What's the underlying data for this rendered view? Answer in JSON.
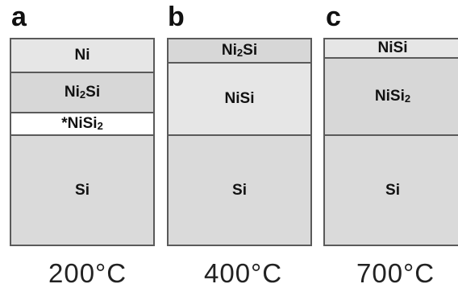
{
  "panels": [
    {
      "letter": "a",
      "temperature": "200°C",
      "layers": [
        {
          "base": "Ni",
          "sub": "",
          "fill": "#e6e6e6"
        },
        {
          "base": "Ni",
          "sub": "2",
          "tail": "Si",
          "fill": "#d7d7d7"
        },
        {
          "base": "*NiSi",
          "sub": "2",
          "fill": "#ffffff"
        },
        {
          "base": "Si",
          "sub": "",
          "fill": "#dadada"
        }
      ]
    },
    {
      "letter": "b",
      "temperature": "400°C",
      "layers": [
        {
          "base": "Ni",
          "sub": "2",
          "tail": "Si",
          "fill": "#d7d7d7"
        },
        {
          "base": "NiSi",
          "sub": "",
          "fill": "#e6e6e6"
        },
        {
          "base": "Si",
          "sub": "",
          "fill": "#dadada"
        }
      ]
    },
    {
      "letter": "c",
      "temperature": "700°C",
      "layers": [
        {
          "base": "NiSi",
          "sub": "",
          "fill": "#e6e6e6"
        },
        {
          "base": "NiSi",
          "sub": "2",
          "fill": "#d7d7d7"
        },
        {
          "base": "Si",
          "sub": "",
          "fill": "#dadada"
        }
      ]
    }
  ]
}
